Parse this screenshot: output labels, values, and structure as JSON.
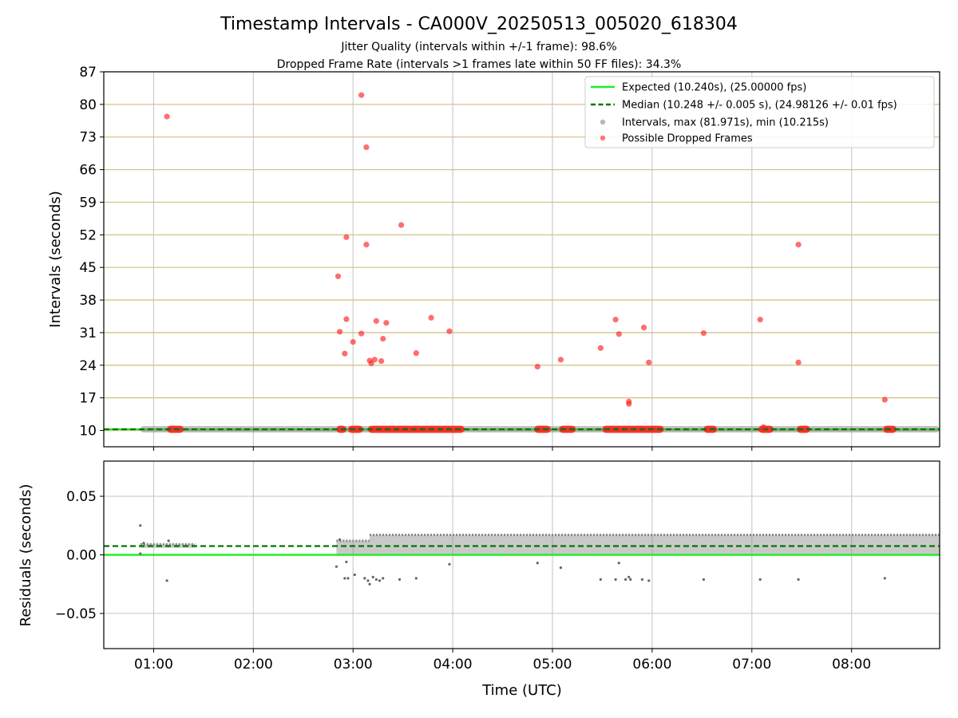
{
  "title": "Timestamp Intervals - CA000V_20250513_005020_618304",
  "subtitle_1": "Jitter Quality (intervals within +/-1 frame): 98.6%",
  "subtitle_2": "Dropped Frame Rate (intervals >1 frames late within 50 FF files): 34.3%",
  "colors": {
    "expected": "#22ee22",
    "median": "#007700",
    "intervals": "#888888",
    "dropped": "#ff2020",
    "h_grid_top": "#d4c48a",
    "grid": "#cccccc"
  },
  "chart_data": [
    {
      "type": "scatter",
      "panel": "top",
      "ylabel": "Intervals (seconds)",
      "xlim": [
        "00:30",
        "08:53"
      ],
      "ylim": [
        6.5,
        87
      ],
      "x_ticks": [
        "01:00",
        "02:00",
        "03:00",
        "04:00",
        "05:00",
        "06:00",
        "07:00",
        "08:00"
      ],
      "y_ticks": [
        "10",
        "17",
        "24",
        "31",
        "38",
        "45",
        "52",
        "59",
        "66",
        "73",
        "80",
        "87"
      ],
      "legend": {
        "placement": "top-right",
        "entries": [
          "Expected (10.240s), (25.00000 fps)",
          "Median (10.248 +/- 0.005 s), (24.98126 +/- 0.01 fps)",
          "Intervals, max (81.971s), min (10.215s)",
          "Possible Dropped Frames"
        ]
      },
      "expected_line": 10.24,
      "median_line": 10.248,
      "interval_band": {
        "x_start": "00:52",
        "x_end": "08:53",
        "y": 10.25
      },
      "dropped_clusters": [
        {
          "x_start": "01:08",
          "x_end": "01:18",
          "y": 10.25
        },
        {
          "x_start": "02:50",
          "x_end": "02:56",
          "y": 10.25
        },
        {
          "x_start": "02:57",
          "x_end": "03:06",
          "y": 10.25
        },
        {
          "x_start": "03:09",
          "x_end": "04:07",
          "y": 10.25
        },
        {
          "x_start": "04:49",
          "x_end": "04:59",
          "y": 10.25
        },
        {
          "x_start": "05:04",
          "x_end": "05:14",
          "y": 10.25
        },
        {
          "x_start": "05:30",
          "x_end": "06:07",
          "y": 10.25
        },
        {
          "x_start": "06:31",
          "x_end": "06:39",
          "y": 10.25
        },
        {
          "x_start": "07:04",
          "x_end": "07:13",
          "y": 10.25
        },
        {
          "x_start": "07:27",
          "x_end": "07:35",
          "y": 10.25
        },
        {
          "x_start": "08:19",
          "x_end": "08:27",
          "y": 10.25
        }
      ],
      "dropped_points": [
        {
          "x": "01:08",
          "y": 77.4
        },
        {
          "x": "02:51",
          "y": 43.1
        },
        {
          "x": "02:52",
          "y": 31.2
        },
        {
          "x": "02:55",
          "y": 26.5
        },
        {
          "x": "02:56",
          "y": 33.9
        },
        {
          "x": "02:56",
          "y": 51.5
        },
        {
          "x": "03:00",
          "y": 29.0
        },
        {
          "x": "03:05",
          "y": 30.8
        },
        {
          "x": "03:05",
          "y": 82.0
        },
        {
          "x": "03:08",
          "y": 70.8
        },
        {
          "x": "03:08",
          "y": 49.9
        },
        {
          "x": "03:10",
          "y": 25.0
        },
        {
          "x": "03:11",
          "y": 24.4
        },
        {
          "x": "03:13",
          "y": 25.2
        },
        {
          "x": "03:14",
          "y": 33.5
        },
        {
          "x": "03:17",
          "y": 24.9
        },
        {
          "x": "03:18",
          "y": 29.7
        },
        {
          "x": "03:20",
          "y": 33.1
        },
        {
          "x": "03:29",
          "y": 54.1
        },
        {
          "x": "03:38",
          "y": 26.6
        },
        {
          "x": "03:47",
          "y": 34.2
        },
        {
          "x": "03:58",
          "y": 31.3
        },
        {
          "x": "04:51",
          "y": 23.7
        },
        {
          "x": "05:05",
          "y": 25.2
        },
        {
          "x": "05:29",
          "y": 27.7
        },
        {
          "x": "05:38",
          "y": 33.8
        },
        {
          "x": "05:40",
          "y": 30.7
        },
        {
          "x": "05:46",
          "y": 16.2
        },
        {
          "x": "05:46",
          "y": 15.7
        },
        {
          "x": "05:55",
          "y": 32.1
        },
        {
          "x": "05:58",
          "y": 24.6
        },
        {
          "x": "06:31",
          "y": 30.9
        },
        {
          "x": "07:05",
          "y": 33.8
        },
        {
          "x": "07:07",
          "y": 10.7
        },
        {
          "x": "07:28",
          "y": 49.9
        },
        {
          "x": "07:28",
          "y": 24.6
        },
        {
          "x": "08:20",
          "y": 16.6
        }
      ]
    },
    {
      "type": "scatter",
      "panel": "bottom",
      "xlabel": "Time (UTC)",
      "ylabel": "Residuals (seconds)",
      "xlim": [
        "00:30",
        "08:53"
      ],
      "ylim": [
        -0.08,
        0.08
      ],
      "x_ticks": [
        "01:00",
        "02:00",
        "03:00",
        "04:00",
        "05:00",
        "06:00",
        "07:00",
        "08:00"
      ],
      "y_ticks": [
        "0.05",
        "0.00",
        "−0.05"
      ],
      "expected_line": 0.0,
      "median_line": 0.0075,
      "residual_bands": [
        {
          "x_start": "00:52",
          "x_end": "01:25",
          "y_low": 0.006,
          "y_high": 0.009
        },
        {
          "x_start": "02:50",
          "x_end": "03:10",
          "y_low": 0.0,
          "y_high": 0.012
        },
        {
          "x_start": "03:10",
          "x_end": "08:53",
          "y_low": 0.0,
          "y_high": 0.017
        }
      ],
      "residual_points": [
        {
          "x": "00:52",
          "y": 0.025
        },
        {
          "x": "00:52",
          "y": 0.001
        },
        {
          "x": "00:54",
          "y": 0.01
        },
        {
          "x": "01:08",
          "y": -0.022
        },
        {
          "x": "01:09",
          "y": 0.012
        },
        {
          "x": "02:50",
          "y": -0.01
        },
        {
          "x": "02:52",
          "y": 0.013
        },
        {
          "x": "02:55",
          "y": -0.02
        },
        {
          "x": "02:56",
          "y": -0.006
        },
        {
          "x": "02:57",
          "y": -0.02
        },
        {
          "x": "03:01",
          "y": -0.017
        },
        {
          "x": "03:07",
          "y": -0.02
        },
        {
          "x": "03:09",
          "y": -0.022
        },
        {
          "x": "03:10",
          "y": -0.025
        },
        {
          "x": "03:12",
          "y": -0.019
        },
        {
          "x": "03:14",
          "y": -0.021
        },
        {
          "x": "03:16",
          "y": -0.022
        },
        {
          "x": "03:18",
          "y": -0.02
        },
        {
          "x": "03:28",
          "y": -0.021
        },
        {
          "x": "03:38",
          "y": -0.02
        },
        {
          "x": "03:58",
          "y": -0.008
        },
        {
          "x": "04:51",
          "y": -0.007
        },
        {
          "x": "05:05",
          "y": -0.011
        },
        {
          "x": "05:29",
          "y": -0.021
        },
        {
          "x": "05:38",
          "y": -0.021
        },
        {
          "x": "05:40",
          "y": -0.007
        },
        {
          "x": "05:44",
          "y": -0.021
        },
        {
          "x": "05:46",
          "y": -0.019
        },
        {
          "x": "05:47",
          "y": -0.021
        },
        {
          "x": "05:54",
          "y": -0.021
        },
        {
          "x": "05:58",
          "y": -0.022
        },
        {
          "x": "06:31",
          "y": -0.021
        },
        {
          "x": "07:05",
          "y": -0.021
        },
        {
          "x": "07:28",
          "y": -0.021
        },
        {
          "x": "08:20",
          "y": -0.02
        }
      ]
    }
  ]
}
